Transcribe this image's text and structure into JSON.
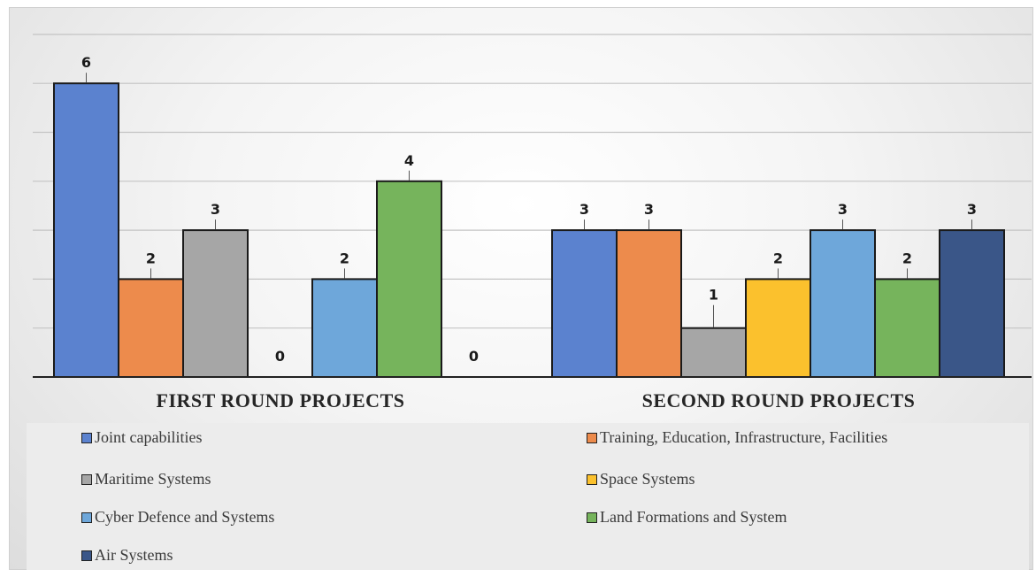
{
  "chart_data": {
    "type": "bar",
    "categories": [
      "FIRST ROUND PROJECTS",
      "SECOND ROUND PROJECTS"
    ],
    "series": [
      {
        "name": "Joint capabilities",
        "color": "#5b82cf",
        "values": [
          6,
          3
        ]
      },
      {
        "name": "Training, Education, Infrastructure, Facilities",
        "color": "#ed8b4c",
        "values": [
          2,
          3
        ]
      },
      {
        "name": "Maritime Systems",
        "color": "#a6a6a6",
        "values": [
          3,
          1
        ]
      },
      {
        "name": "Space Systems",
        "color": "#fbc12d",
        "values": [
          0,
          2
        ]
      },
      {
        "name": "Cyber Defence and Systems",
        "color": "#6ea7da",
        "values": [
          2,
          3
        ]
      },
      {
        "name": "Land Formations and System",
        "color": "#76b45c",
        "values": [
          4,
          2
        ]
      },
      {
        "name": "Air Systems",
        "color": "#3a5688",
        "values": [
          0,
          3
        ]
      }
    ],
    "ylim": [
      0,
      7
    ],
    "grid": true,
    "legend_position": "bottom"
  }
}
